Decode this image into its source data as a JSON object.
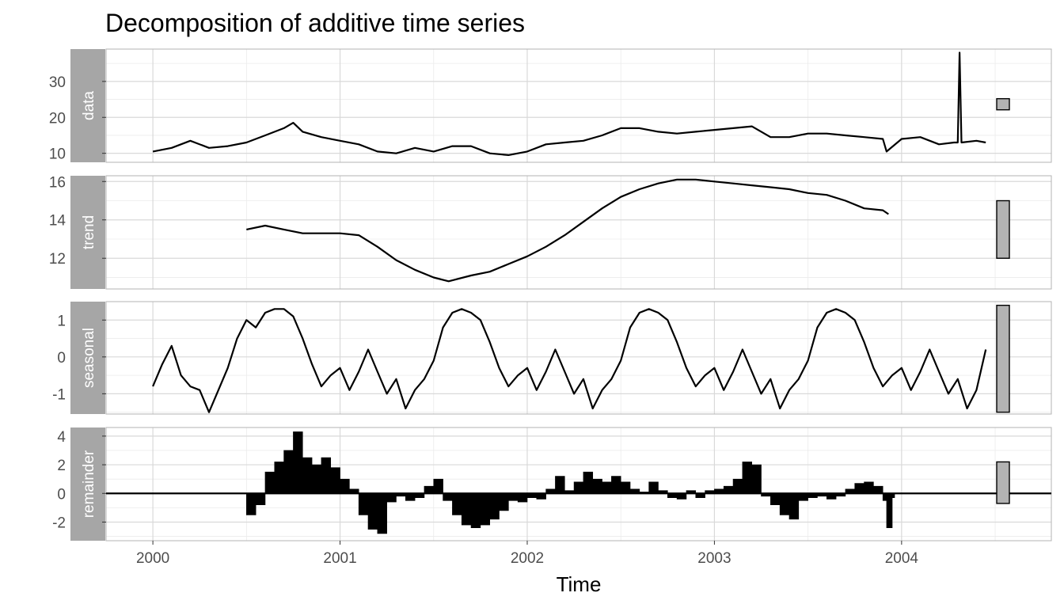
{
  "chart_data": {
    "type": "line",
    "title": "Decomposition of additive time series",
    "xlabel": "Time",
    "x_ticks": [
      2000,
      2001,
      2002,
      2003,
      2004
    ],
    "xlim": [
      1999.75,
      2004.8
    ],
    "grid": true,
    "theme": "light",
    "panels": [
      {
        "name": "data",
        "ylim": [
          7.5,
          39
        ],
        "y_ticks": [
          10,
          20,
          30
        ],
        "scale_bar": [
          22.1,
          25.2
        ],
        "series": {
          "x": [
            2000.0,
            2000.1,
            2000.2,
            2000.3,
            2000.4,
            2000.5,
            2000.6,
            2000.7,
            2000.75,
            2000.8,
            2000.9,
            2001.0,
            2001.1,
            2001.2,
            2001.3,
            2001.4,
            2001.5,
            2001.6,
            2001.7,
            2001.8,
            2001.9,
            2002.0,
            2002.1,
            2002.2,
            2002.3,
            2002.4,
            2002.5,
            2002.6,
            2002.7,
            2002.8,
            2002.9,
            2003.0,
            2003.1,
            2003.2,
            2003.3,
            2003.4,
            2003.5,
            2003.6,
            2003.7,
            2003.8,
            2003.9,
            2003.92,
            2004.0,
            2004.1,
            2004.2,
            2004.28,
            2004.3,
            2004.31,
            2004.32,
            2004.4,
            2004.45
          ],
          "y": [
            10.5,
            11.5,
            13.5,
            11.5,
            12.0,
            13.0,
            15.0,
            17.0,
            18.5,
            16.0,
            14.5,
            13.5,
            12.5,
            10.5,
            10.0,
            11.5,
            10.5,
            12.0,
            12.0,
            10.0,
            9.5,
            10.5,
            12.5,
            13.0,
            13.5,
            15.0,
            17.0,
            17.0,
            16.0,
            15.5,
            16.0,
            16.5,
            17.0,
            17.5,
            14.5,
            14.5,
            15.5,
            15.5,
            15.0,
            14.5,
            14.0,
            10.5,
            14.0,
            14.5,
            12.5,
            13.0,
            13.0,
            38.0,
            13.0,
            13.5,
            13.0
          ]
        }
      },
      {
        "name": "trend",
        "ylim": [
          10.4,
          16.3
        ],
        "y_ticks": [
          12,
          14,
          16
        ],
        "scale_bar": [
          12.0,
          15.0
        ],
        "series": {
          "x": [
            2000.5,
            2000.6,
            2000.7,
            2000.8,
            2000.9,
            2001.0,
            2001.1,
            2001.2,
            2001.3,
            2001.4,
            2001.5,
            2001.58,
            2001.7,
            2001.8,
            2001.9,
            2002.0,
            2002.1,
            2002.2,
            2002.3,
            2002.4,
            2002.5,
            2002.6,
            2002.7,
            2002.8,
            2002.9,
            2003.0,
            2003.1,
            2003.2,
            2003.3,
            2003.4,
            2003.5,
            2003.6,
            2003.7,
            2003.8,
            2003.9,
            2003.93
          ],
          "y": [
            13.5,
            13.7,
            13.5,
            13.3,
            13.3,
            13.3,
            13.2,
            12.6,
            11.9,
            11.4,
            11.0,
            10.8,
            11.1,
            11.3,
            11.7,
            12.1,
            12.6,
            13.2,
            13.9,
            14.6,
            15.2,
            15.6,
            15.9,
            16.1,
            16.1,
            16.0,
            15.9,
            15.8,
            15.7,
            15.6,
            15.4,
            15.3,
            15.0,
            14.6,
            14.5,
            14.3
          ]
        }
      },
      {
        "name": "seasonal",
        "ylim": [
          -1.55,
          1.5
        ],
        "y_ticks": [
          -1,
          0,
          1
        ],
        "scale_bar": [
          -1.5,
          1.4
        ],
        "series": {
          "x": [
            2000.0,
            2000.05,
            2000.1,
            2000.15,
            2000.2,
            2000.25,
            2000.3,
            2000.35,
            2000.4,
            2000.45,
            2000.5,
            2000.55,
            2000.6,
            2000.65,
            2000.7,
            2000.75,
            2000.8,
            2000.85,
            2000.9,
            2000.95,
            2001.0,
            2001.05,
            2001.1,
            2001.15,
            2001.2,
            2001.25,
            2001.3,
            2001.35,
            2001.4,
            2001.45,
            2001.5,
            2001.55,
            2001.6,
            2001.65,
            2001.7,
            2001.75,
            2001.8,
            2001.85,
            2001.9,
            2001.95,
            2002.0,
            2002.05,
            2002.1,
            2002.15,
            2002.2,
            2002.25,
            2002.3,
            2002.35,
            2002.4,
            2002.45,
            2002.5,
            2002.55,
            2002.6,
            2002.65,
            2002.7,
            2002.75,
            2002.8,
            2002.85,
            2002.9,
            2002.95,
            2003.0,
            2003.05,
            2003.1,
            2003.15,
            2003.2,
            2003.25,
            2003.3,
            2003.35,
            2003.4,
            2003.45,
            2003.5,
            2003.55,
            2003.6,
            2003.65,
            2003.7,
            2003.75,
            2003.8,
            2003.85,
            2003.9,
            2003.95,
            2004.0,
            2004.05,
            2004.1,
            2004.15,
            2004.2,
            2004.25,
            2004.3,
            2004.35,
            2004.4,
            2004.45
          ],
          "y": [
            -0.8,
            -0.2,
            0.3,
            -0.5,
            -0.8,
            -0.9,
            -1.5,
            -0.9,
            -0.3,
            0.5,
            1.0,
            0.8,
            1.2,
            1.3,
            1.3,
            1.1,
            0.5,
            -0.2,
            -0.8,
            -0.5,
            -0.3,
            -0.9,
            -0.4,
            0.2,
            -0.4,
            -1.0,
            -0.6,
            -1.4,
            -0.9,
            -0.6,
            -0.1,
            0.8,
            1.2,
            1.3,
            1.2,
            1.0,
            0.4,
            -0.3,
            -0.8,
            -0.5,
            -0.3,
            -0.9,
            -0.4,
            0.2,
            -0.4,
            -1.0,
            -0.6,
            -1.4,
            -0.9,
            -0.6,
            -0.1,
            0.8,
            1.2,
            1.3,
            1.2,
            1.0,
            0.4,
            -0.3,
            -0.8,
            -0.5,
            -0.3,
            -0.9,
            -0.4,
            0.2,
            -0.4,
            -1.0,
            -0.6,
            -1.4,
            -0.9,
            -0.6,
            -0.1,
            0.8,
            1.2,
            1.3,
            1.2,
            1.0,
            0.4,
            -0.3,
            -0.8,
            -0.5,
            -0.3,
            -0.9,
            -0.4,
            0.2,
            -0.4,
            -1.0,
            -0.6,
            -1.4,
            -0.9,
            0.2
          ]
        }
      },
      {
        "name": "remainder",
        "ylim": [
          -3.3,
          4.6
        ],
        "y_ticks": [
          -2,
          0,
          2,
          4
        ],
        "scale_bar": [
          -0.7,
          2.2
        ],
        "series": {
          "x": [
            2000.5,
            2000.55,
            2000.6,
            2000.65,
            2000.7,
            2000.75,
            2000.8,
            2000.85,
            2000.9,
            2000.95,
            2001.0,
            2001.05,
            2001.1,
            2001.15,
            2001.2,
            2001.25,
            2001.3,
            2001.35,
            2001.4,
            2001.45,
            2001.5,
            2001.55,
            2001.6,
            2001.65,
            2001.7,
            2001.75,
            2001.8,
            2001.85,
            2001.9,
            2001.95,
            2002.0,
            2002.05,
            2002.1,
            2002.15,
            2002.2,
            2002.25,
            2002.3,
            2002.35,
            2002.4,
            2002.45,
            2002.5,
            2002.55,
            2002.6,
            2002.65,
            2002.7,
            2002.75,
            2002.8,
            2002.85,
            2002.9,
            2002.95,
            2003.0,
            2003.05,
            2003.1,
            2003.15,
            2003.2,
            2003.25,
            2003.3,
            2003.35,
            2003.4,
            2003.45,
            2003.5,
            2003.55,
            2003.6,
            2003.65,
            2003.7,
            2003.75,
            2003.8,
            2003.85,
            2003.9,
            2003.92,
            2003.95
          ],
          "y": [
            -1.5,
            -0.8,
            1.5,
            2.2,
            3.0,
            4.3,
            2.5,
            2.0,
            2.5,
            1.8,
            1.0,
            0.3,
            -1.5,
            -2.5,
            -2.8,
            -0.6,
            -0.2,
            -0.5,
            -0.3,
            0.5,
            1.0,
            -0.5,
            -1.5,
            -2.2,
            -2.4,
            -2.2,
            -1.8,
            -1.2,
            -0.5,
            -0.6,
            -0.3,
            -0.4,
            0.3,
            1.2,
            0.2,
            0.8,
            1.5,
            1.0,
            0.8,
            1.2,
            0.8,
            0.3,
            0.1,
            0.8,
            0.2,
            -0.3,
            -0.4,
            0.2,
            -0.3,
            0.2,
            0.3,
            0.5,
            1.0,
            2.2,
            2.0,
            -0.2,
            -0.8,
            -1.5,
            -1.8,
            -0.5,
            -0.3,
            -0.2,
            -0.4,
            -0.2,
            0.3,
            0.7,
            0.8,
            0.5,
            -0.5,
            -2.4,
            -0.3
          ]
        }
      }
    ]
  }
}
